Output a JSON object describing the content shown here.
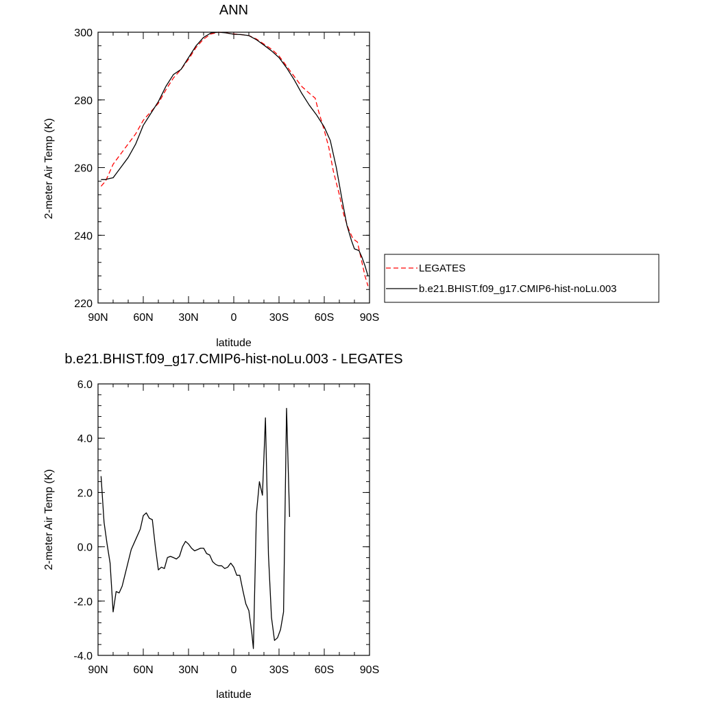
{
  "chart_data": [
    {
      "type": "line",
      "title": "ANN",
      "xlabel": "latitude",
      "ylabel": "2-meter Air Temp (K)",
      "xlim": [
        90,
        -90
      ],
      "ylim": [
        220,
        300
      ],
      "x_ticks": [
        90,
        60,
        30,
        0,
        -30,
        -60,
        -90
      ],
      "x_tick_labels": [
        "90N",
        "60N",
        "30N",
        "0",
        "30S",
        "60S",
        "90S"
      ],
      "y_ticks": [
        220,
        240,
        260,
        280,
        300
      ],
      "y_tick_labels": [
        "220",
        "240",
        "260",
        "280",
        "300"
      ],
      "legend_position": "right, outside plot",
      "series": [
        {
          "name": "LEGATES",
          "color": "#ff0000",
          "dash": "dashed",
          "points": [
            [
              88,
              254.5
            ],
            [
              85,
              256
            ],
            [
              80,
              261
            ],
            [
              75,
              264
            ],
            [
              70,
              267
            ],
            [
              65,
              270
            ],
            [
              60,
              274
            ],
            [
              55,
              276.5
            ],
            [
              50,
              279
            ],
            [
              45,
              283
            ],
            [
              40,
              286.5
            ],
            [
              35,
              289
            ],
            [
              30,
              292
            ],
            [
              25,
              295.5
            ],
            [
              20,
              298
            ],
            [
              15,
              299.5
            ],
            [
              10,
              300
            ],
            [
              5,
              299.8
            ],
            [
              0,
              299.5
            ],
            [
              -5,
              299.3
            ],
            [
              -10,
              299
            ],
            [
              -15,
              298
            ],
            [
              -20,
              296.5
            ],
            [
              -25,
              295
            ],
            [
              -30,
              293
            ],
            [
              -35,
              290
            ],
            [
              -40,
              287
            ],
            [
              -45,
              284
            ],
            [
              -50,
              282
            ],
            [
              -54,
              280.5
            ],
            [
              -56,
              277
            ],
            [
              -60,
              271
            ],
            [
              -63,
              266
            ],
            [
              -66,
              259
            ],
            [
              -70,
              252
            ],
            [
              -73,
              246
            ],
            [
              -76,
              242
            ],
            [
              -79,
              239
            ],
            [
              -82,
              238
            ],
            [
              -84,
              234
            ],
            [
              -87,
              228
            ],
            [
              -89,
              225
            ]
          ]
        },
        {
          "name": "b.e21.BHIST.f09_g17.CMIP6-hist-noLu.003",
          "color": "#000000",
          "dash": "solid",
          "points": [
            [
              88,
              256.5
            ],
            [
              85,
              256.5
            ],
            [
              80,
              257
            ],
            [
              75,
              260
            ],
            [
              70,
              263
            ],
            [
              65,
              267
            ],
            [
              60,
              272.5
            ],
            [
              55,
              276
            ],
            [
              50,
              279.5
            ],
            [
              45,
              284
            ],
            [
              40,
              287.5
            ],
            [
              35,
              289
            ],
            [
              30,
              292.5
            ],
            [
              25,
              296
            ],
            [
              20,
              298.5
            ],
            [
              15,
              299.8
            ],
            [
              10,
              300
            ],
            [
              5,
              299.8
            ],
            [
              0,
              299.4
            ],
            [
              -5,
              299.3
            ],
            [
              -10,
              299
            ],
            [
              -15,
              297.8
            ],
            [
              -20,
              296.2
            ],
            [
              -25,
              294.5
            ],
            [
              -30,
              292.5
            ],
            [
              -35,
              289.5
            ],
            [
              -40,
              286
            ],
            [
              -45,
              282
            ],
            [
              -50,
              278.5
            ],
            [
              -55,
              275.5
            ],
            [
              -60,
              272
            ],
            [
              -64,
              268
            ],
            [
              -68,
              260
            ],
            [
              -72,
              250
            ],
            [
              -75,
              243
            ],
            [
              -78,
              238.5
            ],
            [
              -80,
              236
            ],
            [
              -83,
              235.5
            ],
            [
              -85,
              233.5
            ],
            [
              -87,
              231
            ],
            [
              -89,
              228
            ]
          ]
        }
      ]
    },
    {
      "type": "line",
      "title": "b.e21.BHIST.f09_g17.CMIP6-hist-noLu.003 - LEGATES",
      "xlabel": "latitude",
      "ylabel": "2-meter Air Temp (K)",
      "xlim": [
        90,
        -90
      ],
      "ylim": [
        -4,
        6
      ],
      "x_ticks": [
        90,
        60,
        30,
        0,
        -30,
        -60,
        -90
      ],
      "x_tick_labels": [
        "90N",
        "60N",
        "30N",
        "0",
        "30S",
        "60S",
        "90S"
      ],
      "y_ticks": [
        -4,
        -2,
        0,
        2,
        4,
        6
      ],
      "y_tick_labels": [
        "-4.0",
        "-2.0",
        "0.0",
        "2.0",
        "4.0",
        "6.0"
      ],
      "series": [
        {
          "color": "#000000",
          "dash": "solid",
          "points": [
            [
              88,
              2.6
            ],
            [
              86,
              0.9
            ],
            [
              84,
              0.1
            ],
            [
              82,
              -0.6
            ],
            [
              80,
              -2.4
            ],
            [
              78,
              -1.65
            ],
            [
              76,
              -1.7
            ],
            [
              74,
              -1.45
            ],
            [
              72,
              -1.0
            ],
            [
              70,
              -0.55
            ],
            [
              68,
              -0.1
            ],
            [
              66,
              0.15
            ],
            [
              64,
              0.4
            ],
            [
              62,
              0.65
            ],
            [
              60,
              1.15
            ],
            [
              58,
              1.25
            ],
            [
              56,
              1.05
            ],
            [
              54,
              1.0
            ],
            [
              52,
              0.0
            ],
            [
              50,
              -0.85
            ],
            [
              48,
              -0.75
            ],
            [
              46,
              -0.8
            ],
            [
              44,
              -0.4
            ],
            [
              42,
              -0.35
            ],
            [
              40,
              -0.4
            ],
            [
              38,
              -0.45
            ],
            [
              36,
              -0.35
            ],
            [
              34,
              0.0
            ],
            [
              32,
              0.2
            ],
            [
              30,
              0.1
            ],
            [
              28,
              -0.05
            ],
            [
              26,
              -0.15
            ],
            [
              24,
              -0.1
            ],
            [
              22,
              -0.05
            ],
            [
              20,
              -0.05
            ],
            [
              18,
              -0.25
            ],
            [
              16,
              -0.3
            ],
            [
              14,
              -0.55
            ],
            [
              12,
              -0.65
            ],
            [
              10,
              -0.7
            ],
            [
              8,
              -0.7
            ],
            [
              6,
              -0.8
            ],
            [
              4,
              -0.75
            ],
            [
              2,
              -0.6
            ],
            [
              0,
              -0.75
            ],
            [
              -2,
              -1.05
            ],
            [
              -4,
              -1.05
            ],
            [
              -6,
              -1.6
            ],
            [
              -8,
              -2.1
            ],
            [
              -10,
              -2.35
            ],
            [
              -12,
              -3.2
            ],
            [
              -13,
              -3.75
            ],
            [
              -15,
              1.2
            ],
            [
              -17,
              2.4
            ],
            [
              -19,
              1.9
            ],
            [
              -21,
              4.75
            ],
            [
              -23,
              -0.3
            ],
            [
              -25,
              -2.6
            ],
            [
              -27,
              -3.45
            ],
            [
              -29,
              -3.35
            ],
            [
              -31,
              -3.05
            ],
            [
              -33,
              -2.4
            ],
            [
              -35,
              5.1
            ],
            [
              -37,
              1.1
            ]
          ]
        }
      ]
    }
  ]
}
